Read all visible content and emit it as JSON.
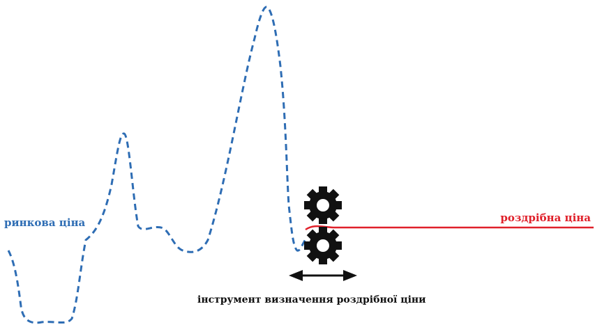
{
  "labels": {
    "market_price": "ринкова ціна",
    "retail_price": "роздрібна ціна",
    "tool": "інструмент визначення роздрібної ціни"
  },
  "icons": {
    "upper_gear": "gear-icon",
    "lower_gear": "gear-icon",
    "arrow": "double-arrow-icon"
  },
  "colors": {
    "market_line": "#2e6db4",
    "retail_line": "#e0202a",
    "gear": "#111111",
    "text": "#111111"
  }
}
